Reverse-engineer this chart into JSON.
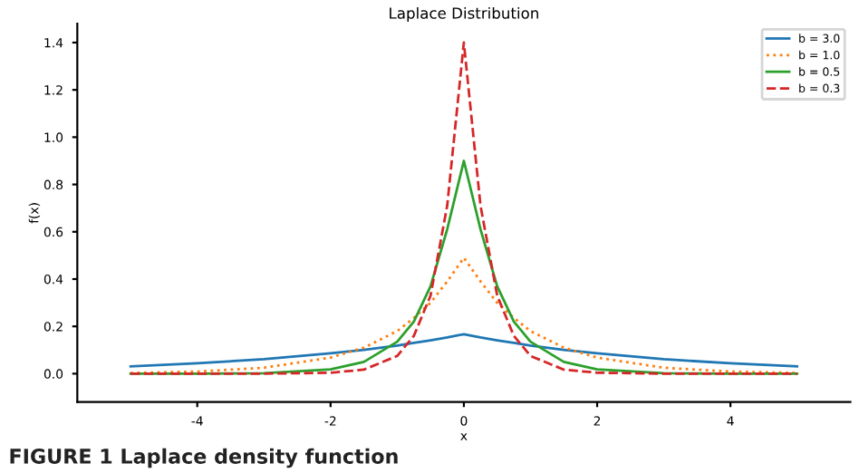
{
  "chart_data": {
    "type": "line",
    "title": "Laplace Distribution",
    "xlabel": "x",
    "ylabel": "f(x)",
    "x": [
      -5,
      -4,
      -3,
      -2,
      -1.5,
      -1,
      -0.75,
      -0.5,
      -0.25,
      0,
      0.25,
      0.5,
      0.75,
      1,
      1.5,
      2,
      3,
      4,
      5
    ],
    "series": [
      {
        "name": "b = 3.0",
        "color": "#1f77b4",
        "line_style": "solid",
        "values": [
          0.031,
          0.044,
          0.061,
          0.086,
          0.101,
          0.119,
          0.13,
          0.141,
          0.153,
          0.167,
          0.153,
          0.141,
          0.13,
          0.119,
          0.101,
          0.086,
          0.061,
          0.044,
          0.031
        ]
      },
      {
        "name": "b = 1.0",
        "color": "#ff7f0e",
        "line_style": "dotted",
        "values": [
          0.003,
          0.009,
          0.025,
          0.068,
          0.11,
          0.18,
          0.236,
          0.3,
          0.39,
          0.49,
          0.39,
          0.3,
          0.236,
          0.18,
          0.11,
          0.068,
          0.025,
          0.009,
          0.003
        ]
      },
      {
        "name": "b = 0.5",
        "color": "#2ca02c",
        "line_style": "solid",
        "values": [
          0,
          0,
          0.002,
          0.018,
          0.05,
          0.135,
          0.22,
          0.37,
          0.61,
          0.9,
          0.61,
          0.37,
          0.22,
          0.135,
          0.05,
          0.018,
          0.002,
          0,
          0
        ]
      },
      {
        "name": "b = 0.3",
        "color": "#d62728",
        "line_style": "dashed",
        "values": [
          0,
          0,
          0,
          0.004,
          0.017,
          0.075,
          0.16,
          0.33,
          0.71,
          1.4,
          0.71,
          0.33,
          0.16,
          0.075,
          0.017,
          0.004,
          0,
          0,
          0
        ]
      }
    ],
    "xlim": [
      -5.8,
      5.8
    ],
    "xticks": [
      -4,
      -2,
      0,
      2,
      4
    ],
    "ylim": [
      -0.12,
      1.48
    ],
    "yticks": [
      {
        "value": 0,
        "label": "0.0"
      },
      0.2,
      0.4,
      0.6,
      0.8,
      {
        "value": 1,
        "label": "1.0"
      },
      1.2,
      1.4
    ],
    "grid": false,
    "legend": "top right",
    "annotations": [
      "FIGURE 1 Laplace density function"
    ]
  }
}
